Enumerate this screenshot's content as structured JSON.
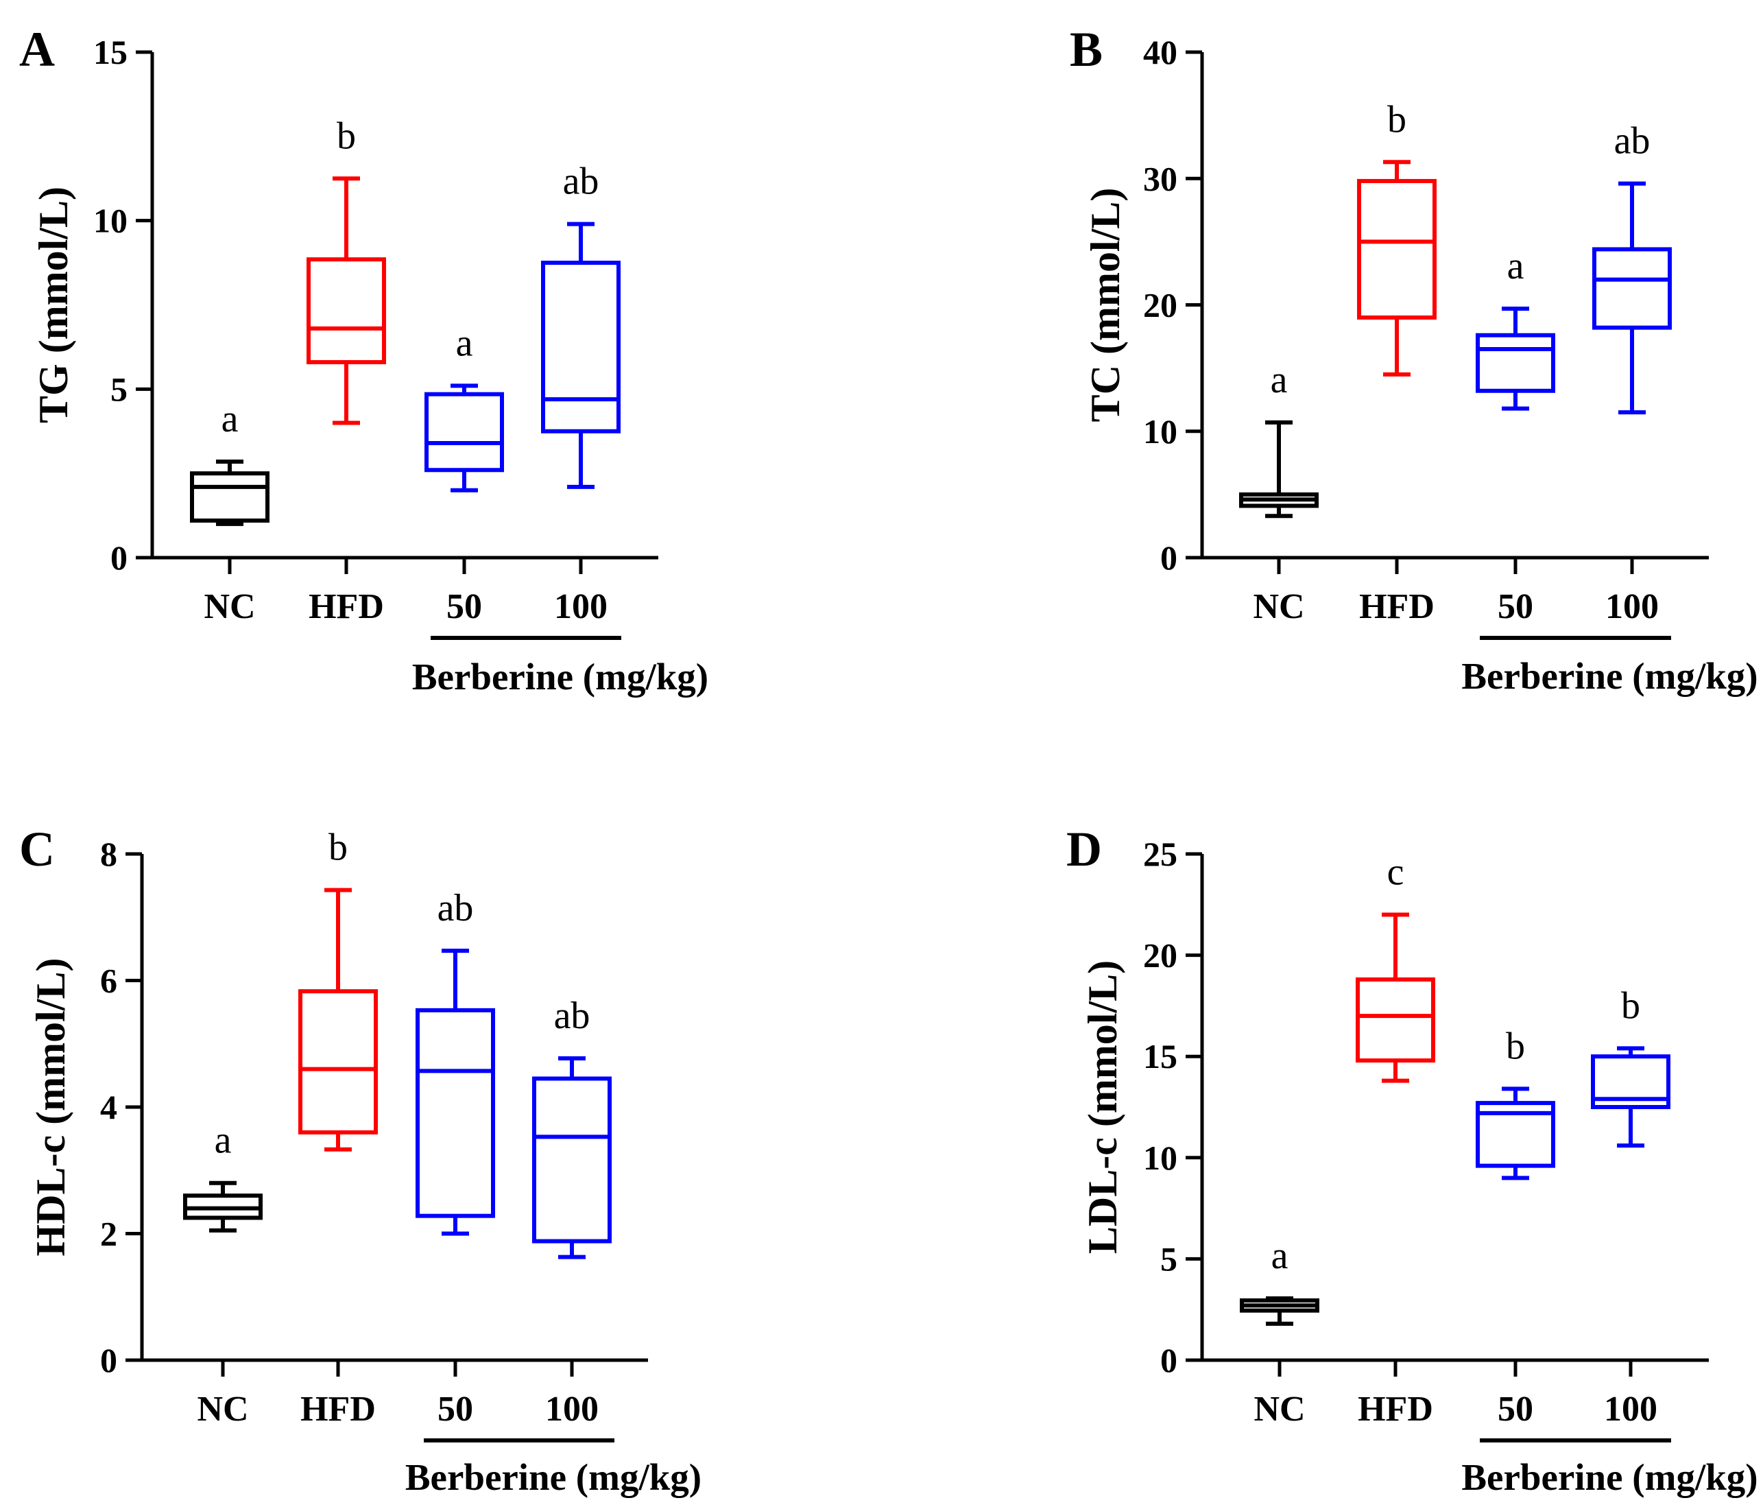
{
  "chart_data": [
    {
      "panel": "A",
      "type": "box",
      "ylabel": "TG (mmol/L)",
      "xlabel": "Berberine (mg/kg)",
      "ylim": [
        0,
        15
      ],
      "yticks": [
        0,
        5,
        10,
        15
      ],
      "categories": [
        "NC",
        "HFD",
        "50",
        "100"
      ],
      "colors": [
        "#000000",
        "#ff0000",
        "#0000ff",
        "#0000ff"
      ],
      "boxes": [
        {
          "min": 1.0,
          "q1": 1.1,
          "median": 2.1,
          "q3": 2.5,
          "max": 2.85
        },
        {
          "min": 4.0,
          "q1": 5.8,
          "median": 6.8,
          "q3": 8.85,
          "max": 11.25
        },
        {
          "min": 2.0,
          "q1": 2.6,
          "median": 3.4,
          "q3": 4.85,
          "max": 5.1
        },
        {
          "min": 2.1,
          "q1": 3.75,
          "median": 4.7,
          "q3": 8.75,
          "max": 9.9
        }
      ],
      "labels": [
        "a",
        "b",
        "a",
        "ab"
      ]
    },
    {
      "panel": "B",
      "type": "box",
      "ylabel": "TC (mmol/L)",
      "xlabel": "Berberine (mg/kg)",
      "ylim": [
        0,
        40
      ],
      "yticks": [
        0,
        10,
        20,
        30,
        40
      ],
      "categories": [
        "NC",
        "HFD",
        "50",
        "100"
      ],
      "colors": [
        "#000000",
        "#ff0000",
        "#0000ff",
        "#0000ff"
      ],
      "boxes": [
        {
          "min": 3.3,
          "q1": 4.1,
          "median": 4.6,
          "q3": 5.0,
          "max": 10.7
        },
        {
          "min": 14.5,
          "q1": 19.0,
          "median": 25.0,
          "q3": 29.8,
          "max": 31.3
        },
        {
          "min": 11.8,
          "q1": 13.2,
          "median": 16.5,
          "q3": 17.6,
          "max": 19.7
        },
        {
          "min": 11.5,
          "q1": 18.2,
          "median": 22.0,
          "q3": 24.4,
          "max": 29.6
        }
      ],
      "labels": [
        "a",
        "b",
        "a",
        "ab"
      ]
    },
    {
      "panel": "C",
      "type": "box",
      "ylabel": "HDL-c (mmol/L)",
      "xlabel": "Berberine (mg/kg)",
      "ylim": [
        0,
        8
      ],
      "yticks": [
        0,
        2,
        4,
        6,
        8
      ],
      "categories": [
        "NC",
        "HFD",
        "50",
        "100"
      ],
      "colors": [
        "#000000",
        "#ff0000",
        "#0000ff",
        "#0000ff"
      ],
      "boxes": [
        {
          "min": 2.05,
          "q1": 2.25,
          "median": 2.4,
          "q3": 2.6,
          "max": 2.8
        },
        {
          "min": 3.33,
          "q1": 3.6,
          "median": 4.6,
          "q3": 5.83,
          "max": 7.43
        },
        {
          "min": 2.0,
          "q1": 2.28,
          "median": 4.57,
          "q3": 5.53,
          "max": 6.47
        },
        {
          "min": 1.63,
          "q1": 1.88,
          "median": 3.53,
          "q3": 4.45,
          "max": 4.77
        }
      ],
      "labels": [
        "a",
        "b",
        "ab",
        "ab"
      ]
    },
    {
      "panel": "D",
      "type": "box",
      "ylabel": "LDL-c (mmol/L)",
      "xlabel": "Berberine (mg/kg)",
      "ylim": [
        0,
        25
      ],
      "yticks": [
        0,
        5,
        10,
        15,
        20,
        25
      ],
      "categories": [
        "NC",
        "HFD",
        "50",
        "100"
      ],
      "colors": [
        "#000000",
        "#ff0000",
        "#0000ff",
        "#0000ff"
      ],
      "boxes": [
        {
          "min": 1.8,
          "q1": 2.45,
          "median": 2.7,
          "q3": 2.95,
          "max": 3.05
        },
        {
          "min": 13.8,
          "q1": 14.8,
          "median": 17.0,
          "q3": 18.8,
          "max": 22.0
        },
        {
          "min": 9.0,
          "q1": 9.6,
          "median": 12.2,
          "q3": 12.7,
          "max": 13.4
        },
        {
          "min": 10.6,
          "q1": 12.5,
          "median": 12.9,
          "q3": 15.0,
          "max": 15.4
        }
      ],
      "labels": [
        "a",
        "c",
        "b",
        "b"
      ]
    }
  ]
}
